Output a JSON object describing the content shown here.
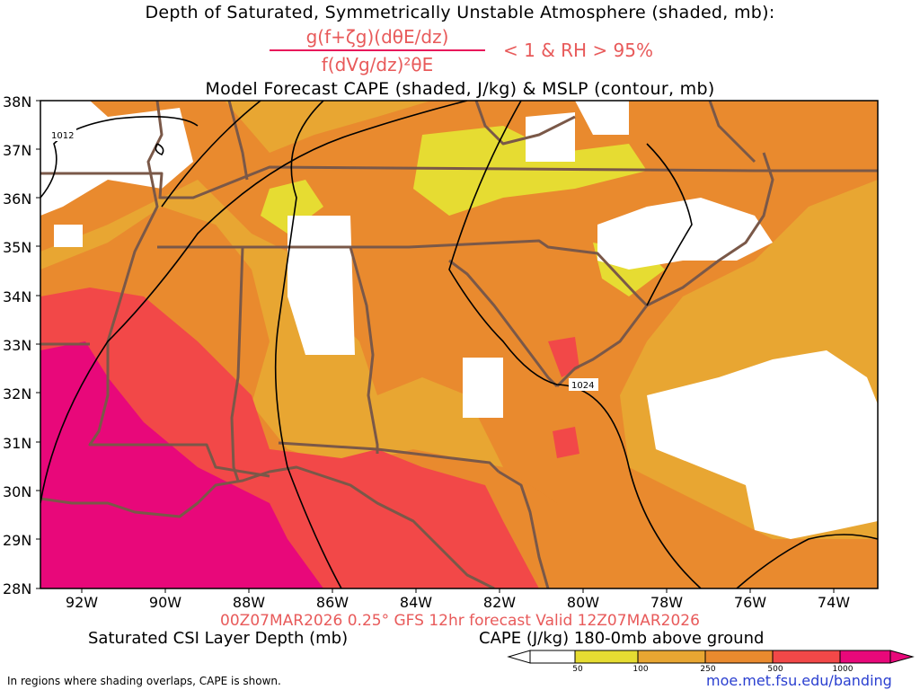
{
  "title": {
    "line1": "Depth of Saturated, Symmetrically Unstable Atmosphere (shaded, mb):",
    "numerator": "g(f+ζg)(dθE/dz)",
    "denominator": "f(dVg/dz)²θE",
    "condition": "< 1 & RH > 95%",
    "line3": "Model Forecast CAPE (shaded, J/kg) & MSLP (contour, mb)"
  },
  "axes": {
    "lat_labels": [
      "38N",
      "37N",
      "36N",
      "35N",
      "34N",
      "33N",
      "32N",
      "31N",
      "30N",
      "29N",
      "28N"
    ],
    "lon_labels": [
      "92W",
      "90W",
      "88W",
      "86W",
      "84W",
      "82W",
      "80W",
      "78W",
      "76W",
      "74W"
    ]
  },
  "contours": {
    "label_1012": "1012",
    "label_1024": "1024"
  },
  "footer": {
    "valid_line": "00Z07MAR2026 0.25° GFS 12hr forecast Valid 12Z07MAR2026",
    "left_caption": "Saturated CSI Layer Depth (mb)",
    "right_caption": "CAPE (J/kg) 180-0mb above ground",
    "note": "In regions where shading overlaps, CAPE is shown.",
    "credit": "moe.met.fsu.edu/banding"
  },
  "colorbar": {
    "labels": [
      "50",
      "100",
      "250",
      "500",
      "1000"
    ],
    "colors": [
      "#ffffff",
      "#e6dc32",
      "#e8a632",
      "#e98a2e",
      "#f24848",
      "#e8087a"
    ]
  },
  "colors": {
    "yellow": "#e6dc32",
    "light_orange": "#e8a632",
    "orange": "#e98a2e",
    "red": "#f24848",
    "magenta": "#e8087a",
    "state_border": "#7a5848",
    "title_red": "#e85a5a",
    "credit_blue": "#2a3fd0"
  }
}
